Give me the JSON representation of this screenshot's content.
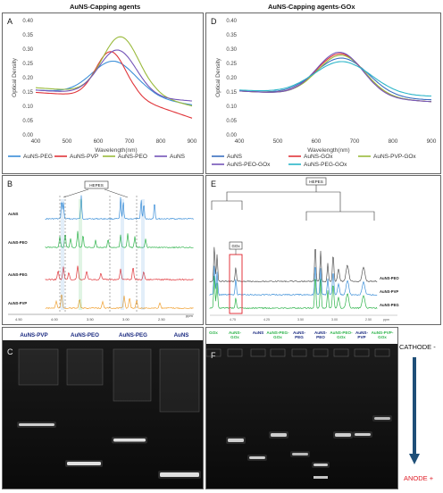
{
  "headers": {
    "left": "AuNS-Capping agents",
    "right": "AuNS-Capping agents-GOx"
  },
  "panel_letters": {
    "A": "A",
    "B": "B",
    "C": "C",
    "D": "D",
    "E": "E",
    "F": "F"
  },
  "uv_left": {
    "ylabel": "Optical Density",
    "xlabel": "Wavelength(nm)",
    "yticks": [
      "0.00",
      "0.05",
      "0.10",
      "0.15",
      "0.20",
      "0.25",
      "0.30",
      "0.35",
      "0.40"
    ],
    "xticks": [
      "400",
      "500",
      "600",
      "700",
      "800",
      "900"
    ],
    "legend": [
      {
        "label": "AuNS-PEG",
        "color": "#3a8ed8"
      },
      {
        "label": "AuNS-PVP",
        "color": "#e0353a"
      },
      {
        "label": "AuNS-PEO",
        "color": "#9aba3c"
      },
      {
        "label": "AuNS",
        "color": "#7455b8"
      }
    ]
  },
  "uv_right": {
    "ylabel": "Optical Density",
    "xlabel": "Wavelength(nm)",
    "yticks": [
      "0.00",
      "0.05",
      "0.10",
      "0.15",
      "0.20",
      "0.25",
      "0.30",
      "0.35",
      "0.40"
    ],
    "xticks": [
      "400",
      "500",
      "600",
      "700",
      "800",
      "900"
    ],
    "legend": [
      {
        "label": "AuNS",
        "color": "#3a6fc0"
      },
      {
        "label": "AuNS-GOx",
        "color": "#e0353a"
      },
      {
        "label": "AuNS-PVP-GOx",
        "color": "#9aba3c"
      },
      {
        "label": "AuNS-PEO-GOx",
        "color": "#7455b8"
      },
      {
        "label": "AuNS-PEG-GOx",
        "color": "#2ab5c8"
      }
    ]
  },
  "nmr_left": {
    "hepes_label": "HEPES",
    "traces": [
      {
        "label": "AuNS",
        "color": "#3a8ed8"
      },
      {
        "label": "AuNS-PEO",
        "color": "#2db34a"
      },
      {
        "label": "AuNS-PEG",
        "color": "#e0353a"
      },
      {
        "label": "AuNS-PVP",
        "color": "#f0a030"
      }
    ],
    "axis_ticks": [
      "4.50",
      "4.00",
      "3.50",
      "3.00",
      "2.50"
    ],
    "axis_unit": "ppm"
  },
  "nmr_right": {
    "hepes_label": "HEPES",
    "gox_label": "GOx",
    "traces": [
      {
        "label": "AuNS-PEO",
        "color": "#555555"
      },
      {
        "label": "AuNS-PVP",
        "color": "#3a8ed8"
      },
      {
        "label": "AuNS-PEG",
        "color": "#2db34a"
      }
    ],
    "axis_ticks": [
      "4.75",
      "4.25",
      "3.50",
      "3.00",
      "2.50"
    ],
    "axis_unit": "ppm"
  },
  "gel_left": {
    "lanes": [
      {
        "label": "AuNS-PVP",
        "color": "#1a2a80"
      },
      {
        "label": "AuNS-PEO",
        "color": "#1a2a80"
      },
      {
        "label": "AuNS-PEG",
        "color": "#1a2a80"
      },
      {
        "label": "AuNS",
        "color": "#1a2a80"
      }
    ]
  },
  "gel_right": {
    "lanes": [
      {
        "label": "GOx",
        "color": "#2db34a"
      },
      {
        "label": "AuNS-GOx",
        "color": "#2db34a"
      },
      {
        "label": "AuNS",
        "color": "#1a2a80"
      },
      {
        "label": "AuNS-PEG-GOx",
        "color": "#2db34a"
      },
      {
        "label": "AuNS-PEG",
        "color": "#1a2a80"
      },
      {
        "label": "AuNS-PEO",
        "color": "#1a2a80"
      },
      {
        "label": "AuNS-PEO-GOx",
        "color": "#2db34a"
      },
      {
        "label": "AuNS-PVP",
        "color": "#1a2a80"
      },
      {
        "label": "AuNS-PVP-GOx",
        "color": "#2db34a"
      }
    ]
  },
  "electrodes": {
    "cathode": "CATHODE -",
    "anode": "ANODE +",
    "anode_color": "#e0202a",
    "arrow_color": "#1f4f78"
  }
}
